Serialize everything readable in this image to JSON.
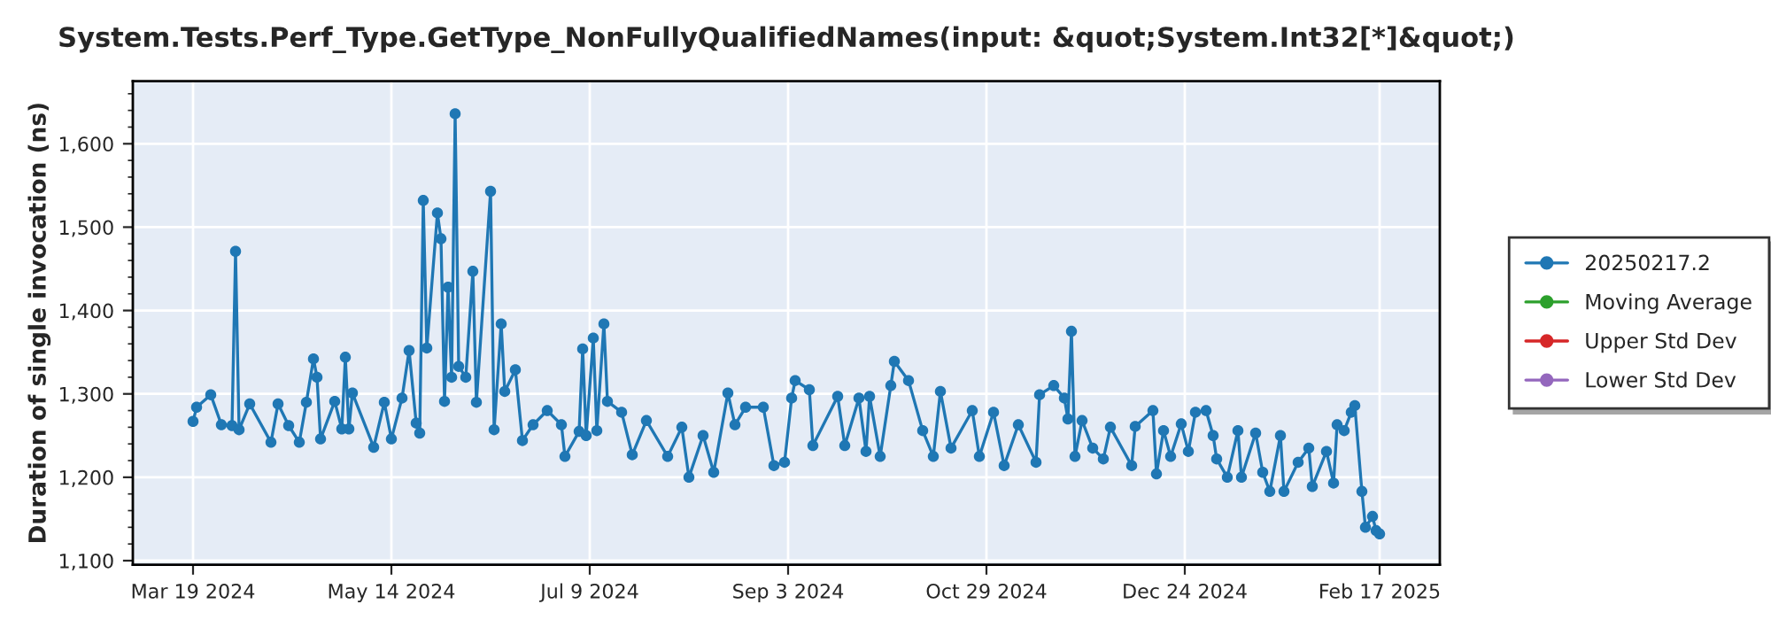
{
  "chart_data": {
    "type": "line",
    "title": "System.Tests.Perf_Type.GetType_NonFullyQualifiedNames(input: &quot;System.Int32[*]&quot;)",
    "ylabel": "Duration of single invocation (ns)",
    "xlim": [
      "2024-03-02",
      "2025-03-06"
    ],
    "xticks": [
      {
        "value": "2024-03-19",
        "label": "Mar 19 2024"
      },
      {
        "value": "2024-05-14",
        "label": "May 14 2024"
      },
      {
        "value": "2024-07-09",
        "label": "Jul 9 2024"
      },
      {
        "value": "2024-09-03",
        "label": "Sep 3 2024"
      },
      {
        "value": "2024-10-29",
        "label": "Oct 29 2024"
      },
      {
        "value": "2024-12-24",
        "label": "Dec 24 2024"
      },
      {
        "value": "2025-02-17",
        "label": "Feb 17 2025"
      }
    ],
    "ylim": [
      1095,
      1675
    ],
    "yticks": [
      {
        "value": 1100,
        "label": "1,100"
      },
      {
        "value": 1200,
        "label": "1,200"
      },
      {
        "value": 1300,
        "label": "1,300"
      },
      {
        "value": 1400,
        "label": "1,400"
      },
      {
        "value": 1500,
        "label": "1,500"
      },
      {
        "value": 1600,
        "label": "1,600"
      }
    ],
    "grid": true,
    "legend": "right",
    "marker": "circle",
    "line_style": "solid",
    "series": [
      {
        "name": "20250217.2",
        "color": "#1f77b4",
        "x": [
          "2024-03-19",
          "2024-03-20",
          "2024-03-24",
          "2024-03-27",
          "2024-03-30",
          "2024-03-31",
          "2024-04-01",
          "2024-04-04",
          "2024-04-10",
          "2024-04-12",
          "2024-04-15",
          "2024-04-18",
          "2024-04-20",
          "2024-04-22",
          "2024-04-23",
          "2024-04-24",
          "2024-04-28",
          "2024-04-30",
          "2024-05-01",
          "2024-05-02",
          "2024-05-03",
          "2024-05-09",
          "2024-05-12",
          "2024-05-14",
          "2024-05-17",
          "2024-05-19",
          "2024-05-21",
          "2024-05-22",
          "2024-05-23",
          "2024-05-24",
          "2024-05-27",
          "2024-05-28",
          "2024-05-29",
          "2024-05-30",
          "2024-05-31",
          "2024-06-01",
          "2024-06-02",
          "2024-06-04",
          "2024-06-06",
          "2024-06-07",
          "2024-06-11",
          "2024-06-12",
          "2024-06-14",
          "2024-06-15",
          "2024-06-18",
          "2024-06-20",
          "2024-06-23",
          "2024-06-27",
          "2024-07-01",
          "2024-07-02",
          "2024-07-06",
          "2024-07-07",
          "2024-07-08",
          "2024-07-10",
          "2024-07-11",
          "2024-07-13",
          "2024-07-14",
          "2024-07-18",
          "2024-07-21",
          "2024-07-25",
          "2024-07-31",
          "2024-08-04",
          "2024-08-06",
          "2024-08-10",
          "2024-08-13",
          "2024-08-17",
          "2024-08-19",
          "2024-08-22",
          "2024-08-27",
          "2024-08-30",
          "2024-09-02",
          "2024-09-04",
          "2024-09-05",
          "2024-09-09",
          "2024-09-10",
          "2024-09-17",
          "2024-09-19",
          "2024-09-23",
          "2024-09-25",
          "2024-09-26",
          "2024-09-29",
          "2024-10-02",
          "2024-10-03",
          "2024-10-07",
          "2024-10-11",
          "2024-10-14",
          "2024-10-16",
          "2024-10-19",
          "2024-10-25",
          "2024-10-27",
          "2024-10-31",
          "2024-11-03",
          "2024-11-07",
          "2024-11-12",
          "2024-11-13",
          "2024-11-17",
          "2024-11-20",
          "2024-11-21",
          "2024-11-22",
          "2024-11-23",
          "2024-11-25",
          "2024-11-28",
          "2024-12-01",
          "2024-12-03",
          "2024-12-09",
          "2024-12-10",
          "2024-12-15",
          "2024-12-16",
          "2024-12-18",
          "2024-12-20",
          "2024-12-23",
          "2024-12-25",
          "2024-12-27",
          "2024-12-30",
          "2025-01-01",
          "2025-01-02",
          "2025-01-05",
          "2025-01-08",
          "2025-01-09",
          "2025-01-13",
          "2025-01-15",
          "2025-01-17",
          "2025-01-20",
          "2025-01-21",
          "2025-01-25",
          "2025-01-28",
          "2025-01-29",
          "2025-02-02",
          "2025-02-04",
          "2025-02-05",
          "2025-02-07",
          "2025-02-09",
          "2025-02-10",
          "2025-02-12",
          "2025-02-13",
          "2025-02-15",
          "2025-02-16",
          "2025-02-17"
        ],
        "values": [
          1267,
          1284,
          1299,
          1263,
          1262,
          1471,
          1257,
          1288,
          1242,
          1288,
          1262,
          1242,
          1290,
          1342,
          1320,
          1246,
          1291,
          1258,
          1344,
          1258,
          1301,
          1236,
          1290,
          1246,
          1295,
          1352,
          1265,
          1253,
          1532,
          1355,
          1517,
          1486,
          1291,
          1428,
          1320,
          1636,
          1333,
          1320,
          1447,
          1290,
          1543,
          1257,
          1384,
          1303,
          1329,
          1244,
          1263,
          1280,
          1263,
          1225,
          1255,
          1354,
          1250,
          1367,
          1256,
          1384,
          1291,
          1278,
          1227,
          1268,
          1225,
          1260,
          1200,
          1250,
          1206,
          1301,
          1263,
          1284,
          1284,
          1214,
          1218,
          1295,
          1316,
          1305,
          1238,
          1297,
          1238,
          1295,
          1231,
          1297,
          1225,
          1310,
          1339,
          1316,
          1256,
          1225,
          1303,
          1235,
          1280,
          1225,
          1278,
          1214,
          1263,
          1218,
          1299,
          1310,
          1295,
          1270,
          1375,
          1225,
          1268,
          1235,
          1222,
          1260,
          1214,
          1261,
          1280,
          1204,
          1256,
          1225,
          1264,
          1231,
          1278,
          1280,
          1250,
          1222,
          1200,
          1256,
          1200,
          1253,
          1206,
          1183,
          1250,
          1183,
          1218,
          1235,
          1189,
          1231,
          1193,
          1263,
          1256,
          1278,
          1286,
          1183,
          1140,
          1153,
          1136,
          1132
        ]
      },
      {
        "name": "Moving Average",
        "color": "#2ca02c"
      },
      {
        "name": "Upper Std Dev",
        "color": "#d62728"
      },
      {
        "name": "Lower Std Dev",
        "color": "#9467bd"
      }
    ]
  }
}
